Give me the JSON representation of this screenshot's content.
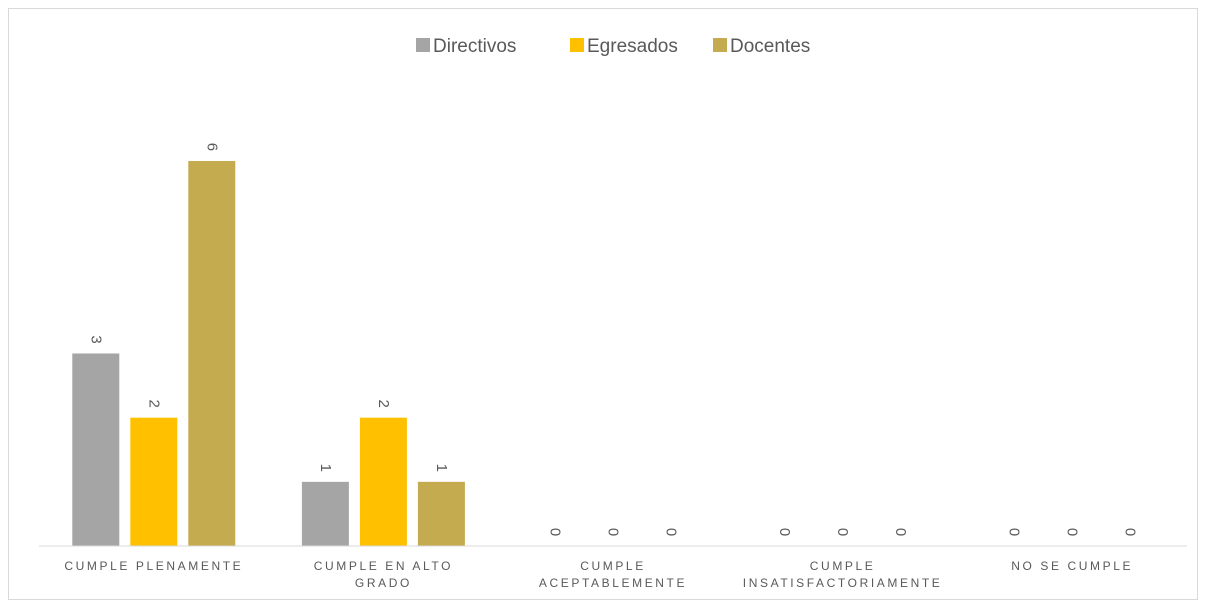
{
  "chart_data": {
    "type": "bar",
    "title": "",
    "xlabel": "",
    "ylabel": "",
    "categories": [
      [
        "CUMPLE PLENAMENTE"
      ],
      [
        "CUMPLE EN ALTO",
        "GRADO"
      ],
      [
        "CUMPLE",
        "ACEPTABLEMENTE"
      ],
      [
        "CUMPLE",
        "INSATISFACTORIAMENTE"
      ],
      [
        "NO SE CUMPLE"
      ]
    ],
    "series": [
      {
        "name": "Directivos",
        "color": "#a5a5a5",
        "values": [
          3,
          1,
          0,
          0,
          0
        ]
      },
      {
        "name": "Egresados",
        "color": "#ffc000",
        "values": [
          2,
          2,
          0,
          0,
          0
        ]
      },
      {
        "name": "Docentes",
        "color": "#c4ab4f",
        "values": [
          6,
          1,
          0,
          0,
          0
        ]
      }
    ],
    "ylim": [
      0,
      6
    ],
    "grid": false,
    "legend_position": "top-center",
    "data_labels": true,
    "data_label_rotation": "vertical"
  }
}
